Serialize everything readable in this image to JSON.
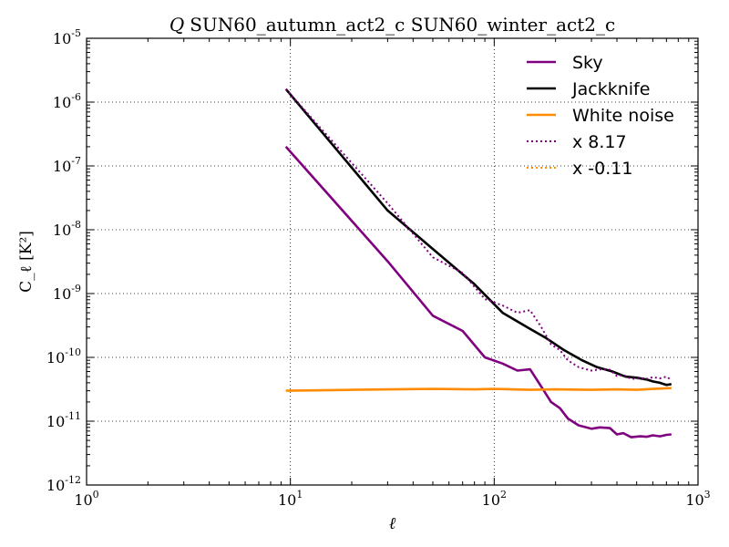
{
  "chart_data": {
    "type": "line",
    "title": "Q SUN60_autumn_act2_c SUN60_winter_act2_c",
    "title_symbol": "Q",
    "title_rest": "SUN60_autumn_act2_c SUN60_winter_act2_c",
    "xlabel": "ℓ",
    "ylabel": "C_ℓ [K²]",
    "xscale": "log",
    "yscale": "log",
    "xlim": [
      1,
      1000
    ],
    "ylim": [
      1e-12,
      1e-05
    ],
    "grid": true,
    "legend_position": "top-right",
    "x_ticks": [
      {
        "base": "10",
        "exp": "0",
        "value": 1
      },
      {
        "base": "10",
        "exp": "1",
        "value": 10
      },
      {
        "base": "10",
        "exp": "2",
        "value": 100
      },
      {
        "base": "10",
        "exp": "3",
        "value": 1000
      }
    ],
    "y_ticks": [
      {
        "base": "10",
        "exp": "-12",
        "value": 1e-12
      },
      {
        "base": "10",
        "exp": "-11",
        "value": 1e-11
      },
      {
        "base": "10",
        "exp": "-10",
        "value": 1e-10
      },
      {
        "base": "10",
        "exp": "-9",
        "value": 1e-09
      },
      {
        "base": "10",
        "exp": "-8",
        "value": 1e-08
      },
      {
        "base": "10",
        "exp": "-7",
        "value": 1e-07
      },
      {
        "base": "10",
        "exp": "-6",
        "value": 1e-06
      },
      {
        "base": "10",
        "exp": "-5",
        "value": 1e-05
      }
    ],
    "series": [
      {
        "name": "Sky",
        "color": "#800080",
        "style": "solid",
        "points": [
          [
            9.5,
            2e-07
          ],
          [
            30,
            3.2e-09
          ],
          [
            50,
            4.5e-10
          ],
          [
            70,
            2.6e-10
          ],
          [
            90,
            1e-10
          ],
          [
            110,
            8e-11
          ],
          [
            130,
            6.2e-11
          ],
          [
            150,
            6.5e-11
          ],
          [
            170,
            3.5e-11
          ],
          [
            190,
            2e-11
          ],
          [
            210,
            1.6e-11
          ],
          [
            230,
            1.1e-11
          ],
          [
            260,
            8.6e-12
          ],
          [
            300,
            7.6e-12
          ],
          [
            330,
            8e-12
          ],
          [
            370,
            7.8e-12
          ],
          [
            400,
            6.2e-12
          ],
          [
            430,
            6.5e-12
          ],
          [
            470,
            5.6e-12
          ],
          [
            520,
            5.8e-12
          ],
          [
            560,
            5.7e-12
          ],
          [
            600,
            6e-12
          ],
          [
            650,
            5.8e-12
          ],
          [
            700,
            6.1e-12
          ],
          [
            740,
            6.2e-12
          ]
        ]
      },
      {
        "name": "Jackknife",
        "color": "#000000",
        "style": "solid",
        "points": [
          [
            9.5,
            1.6e-06
          ],
          [
            30,
            2e-08
          ],
          [
            50,
            5e-09
          ],
          [
            80,
            1.4e-09
          ],
          [
            110,
            5e-10
          ],
          [
            150,
            2.8e-10
          ],
          [
            180,
            2e-10
          ],
          [
            220,
            1.3e-10
          ],
          [
            270,
            9e-11
          ],
          [
            320,
            7e-11
          ],
          [
            380,
            6e-11
          ],
          [
            440,
            5e-11
          ],
          [
            500,
            4.8e-11
          ],
          [
            560,
            4.5e-11
          ],
          [
            600,
            4.2e-11
          ],
          [
            650,
            4e-11
          ],
          [
            700,
            3.7e-11
          ],
          [
            740,
            3.8e-11
          ]
        ]
      },
      {
        "name": "White noise",
        "color": "#ff8c00",
        "style": "solid",
        "points": [
          [
            9.5,
            3e-11
          ],
          [
            20,
            3.1e-11
          ],
          [
            50,
            3.2e-11
          ],
          [
            80,
            3.15e-11
          ],
          [
            100,
            3.2e-11
          ],
          [
            150,
            3.1e-11
          ],
          [
            200,
            3.15e-11
          ],
          [
            300,
            3.1e-11
          ],
          [
            400,
            3.15e-11
          ],
          [
            500,
            3.1e-11
          ],
          [
            600,
            3.2e-11
          ],
          [
            740,
            3.3e-11
          ]
        ]
      },
      {
        "name": "x 8.17",
        "color": "#800080",
        "style": "dotted",
        "points": [
          [
            9.5,
            1.6e-06
          ],
          [
            30,
            2.6e-08
          ],
          [
            50,
            3.7e-09
          ],
          [
            70,
            2.1e-09
          ],
          [
            90,
            8.2e-10
          ],
          [
            110,
            6.5e-10
          ],
          [
            130,
            5e-10
          ],
          [
            150,
            5.5e-10
          ],
          [
            170,
            3e-10
          ],
          [
            190,
            1.6e-10
          ],
          [
            210,
            1.3e-10
          ],
          [
            230,
            9e-11
          ],
          [
            260,
            7e-11
          ],
          [
            300,
            6.2e-11
          ],
          [
            330,
            6.5e-11
          ],
          [
            370,
            6.4e-11
          ],
          [
            400,
            5.1e-11
          ],
          [
            430,
            5.3e-11
          ],
          [
            470,
            4.6e-11
          ],
          [
            520,
            4.7e-11
          ],
          [
            560,
            4.6e-11
          ],
          [
            600,
            4.9e-11
          ],
          [
            650,
            4.7e-11
          ],
          [
            700,
            5e-11
          ],
          [
            740,
            4.4e-11
          ]
        ]
      },
      {
        "name": "x -0.11",
        "color": "#ff8c00",
        "style": "dotted",
        "points": []
      }
    ]
  }
}
